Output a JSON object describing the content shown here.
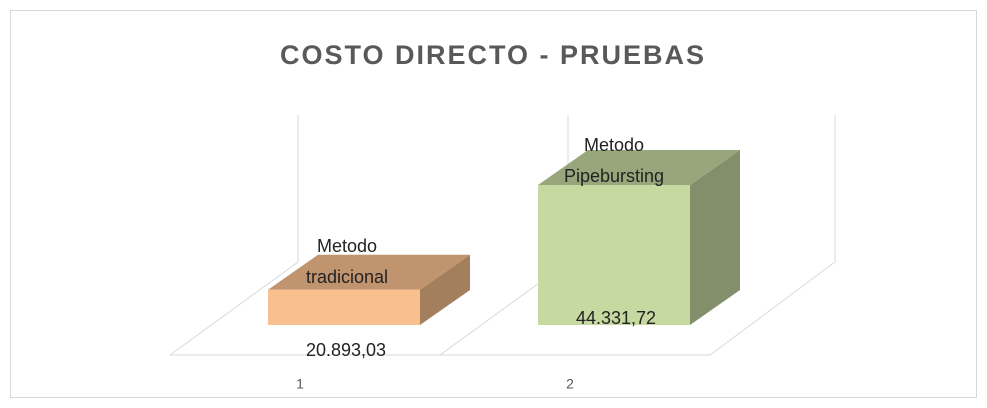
{
  "chart_data": {
    "type": "bar3d",
    "title": "COSTO DIRECTO - PRUEBAS",
    "categories": [
      "1",
      "2"
    ],
    "values": [
      20893.03,
      44331.72
    ],
    "value_labels": [
      "20.893,03",
      "44.331,72"
    ],
    "point_labels": [
      "Metodo tradicional",
      "Metodo Pipebursting"
    ],
    "colors": [
      "#f9c08f",
      "#c6d9a0"
    ],
    "ylim": [
      13000,
      60000
    ]
  }
}
